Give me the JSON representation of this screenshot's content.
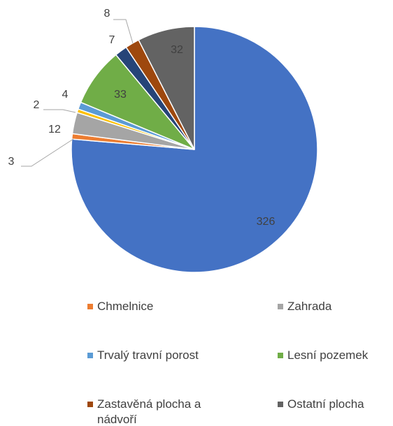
{
  "chart_data": {
    "type": "pie",
    "categories": [
      null,
      "Chmelnice",
      "Zahrada",
      null,
      "Trvalý travní porost",
      "Lesní pozemek",
      null,
      "Zastavěná plocha a nádvoří",
      "Ostatní plocha"
    ],
    "values": [
      326,
      3,
      12,
      2,
      4,
      33,
      7,
      8,
      32
    ],
    "colors": [
      "#4472c4",
      "#ed7d31",
      "#a5a5a5",
      "#ffc000",
      "#5b9bd5",
      "#70ad47",
      "#264478",
      "#9e480e",
      "#636363"
    ]
  }
}
